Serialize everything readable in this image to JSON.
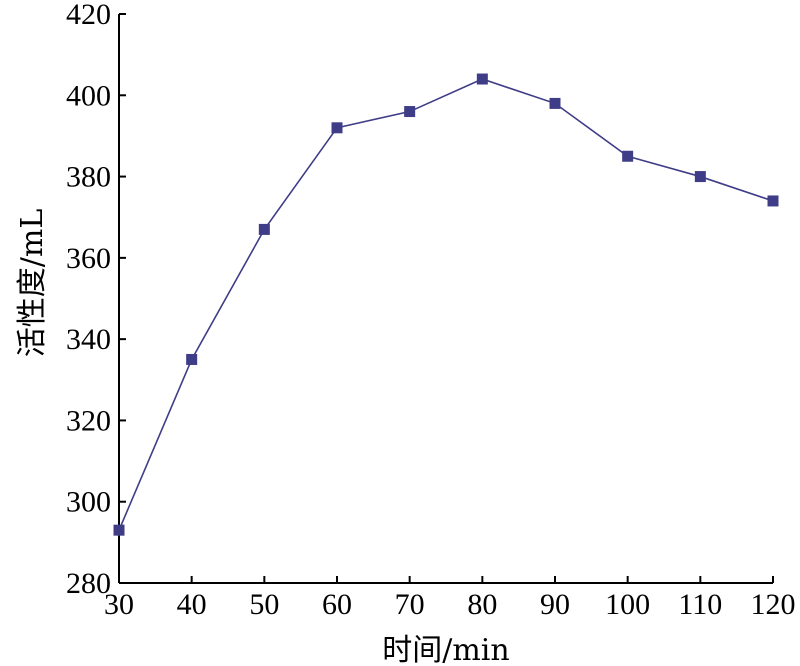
{
  "chart_data": {
    "type": "line",
    "title": "",
    "xlabel": "时间/min",
    "ylabel": "活性度/mL",
    "xlim": [
      30,
      120
    ],
    "ylim": [
      280,
      420
    ],
    "xticks": [
      30,
      40,
      50,
      60,
      70,
      80,
      90,
      100,
      110,
      120
    ],
    "yticks": [
      280,
      300,
      320,
      340,
      360,
      380,
      400,
      420
    ],
    "grid": false,
    "legend": "none",
    "series": [
      {
        "color": "#3f3d87",
        "marker": "square",
        "x": [
          30,
          40,
          50,
          60,
          70,
          80,
          90,
          100,
          110,
          120
        ],
        "y": [
          293,
          335,
          367,
          392,
          396,
          404,
          398,
          385,
          380,
          374
        ]
      }
    ]
  }
}
